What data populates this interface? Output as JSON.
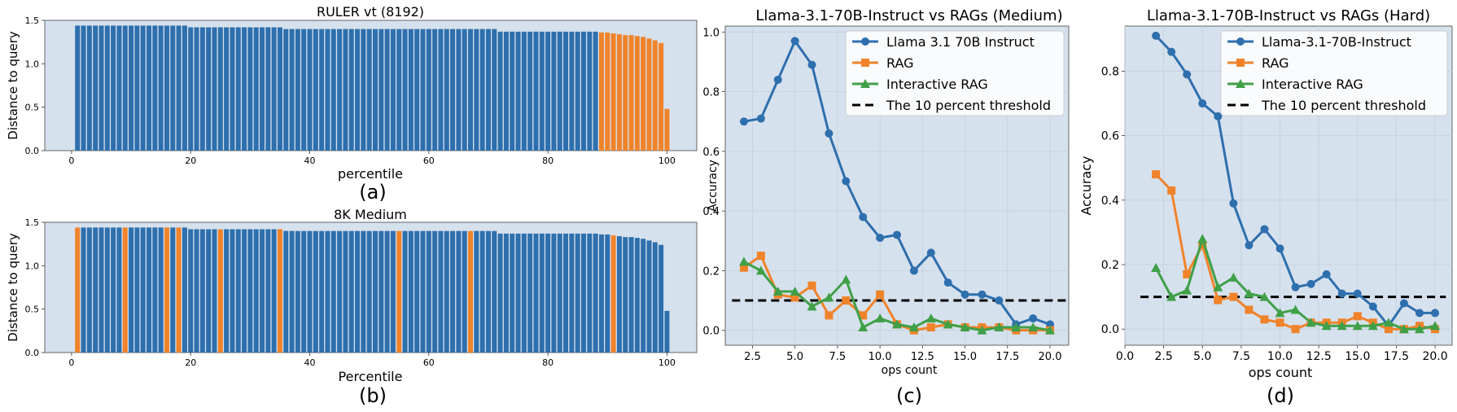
{
  "chart_data": [
    {
      "id": "a",
      "type": "bar",
      "title": "RULER vt (8192)",
      "xlabel": "percentile",
      "ylabel": "Distance to query",
      "caption": "(a)",
      "xlim": [
        -4.5,
        105
      ],
      "ylim": [
        0,
        1.5
      ],
      "xticks": [
        0,
        20,
        40,
        60,
        80,
        100
      ],
      "yticks": [
        0.0,
        0.5,
        1.0,
        1.5
      ],
      "colors": {
        "blue": "#2e6fad",
        "orange": "#f0832a",
        "background": "#d6e1ee"
      },
      "bars": {
        "x_start": 1,
        "x_step": 1,
        "values": [
          1.44,
          1.44,
          1.44,
          1.44,
          1.44,
          1.44,
          1.44,
          1.44,
          1.44,
          1.44,
          1.44,
          1.44,
          1.44,
          1.44,
          1.44,
          1.44,
          1.44,
          1.44,
          1.44,
          1.42,
          1.42,
          1.42,
          1.42,
          1.42,
          1.42,
          1.42,
          1.42,
          1.42,
          1.42,
          1.42,
          1.42,
          1.42,
          1.42,
          1.42,
          1.42,
          1.4,
          1.4,
          1.4,
          1.4,
          1.4,
          1.4,
          1.4,
          1.4,
          1.4,
          1.4,
          1.4,
          1.4,
          1.4,
          1.4,
          1.4,
          1.4,
          1.4,
          1.4,
          1.4,
          1.4,
          1.4,
          1.4,
          1.4,
          1.4,
          1.4,
          1.4,
          1.4,
          1.4,
          1.4,
          1.4,
          1.4,
          1.4,
          1.4,
          1.4,
          1.4,
          1.4,
          1.37,
          1.37,
          1.37,
          1.37,
          1.37,
          1.37,
          1.37,
          1.37,
          1.37,
          1.37,
          1.37,
          1.37,
          1.37,
          1.37,
          1.37,
          1.37,
          1.37,
          1.36,
          1.36,
          1.35,
          1.34,
          1.33,
          1.33,
          1.32,
          1.31,
          1.29,
          1.27,
          1.24,
          0.48
        ],
        "orange_indices": [
          88,
          89,
          90,
          91,
          92,
          93,
          94,
          95,
          96,
          97,
          98,
          99
        ]
      }
    },
    {
      "id": "b",
      "type": "bar",
      "title": "8K Medium",
      "xlabel": "Percentile",
      "ylabel": "Distance to query",
      "caption": "(b)",
      "xlim": [
        -4.5,
        105
      ],
      "ylim": [
        0,
        1.5
      ],
      "xticks": [
        0,
        20,
        40,
        60,
        80,
        100
      ],
      "yticks": [
        0.0,
        0.5,
        1.0,
        1.5
      ],
      "colors": {
        "blue": "#2e6fad",
        "orange": "#f0832a",
        "background": "#d6e1ee"
      },
      "bars": {
        "x_start": 1,
        "x_step": 1,
        "values": [
          1.44,
          1.44,
          1.44,
          1.44,
          1.44,
          1.44,
          1.44,
          1.44,
          1.44,
          1.44,
          1.44,
          1.44,
          1.44,
          1.44,
          1.44,
          1.44,
          1.44,
          1.44,
          1.44,
          1.42,
          1.42,
          1.42,
          1.42,
          1.42,
          1.42,
          1.42,
          1.42,
          1.42,
          1.42,
          1.42,
          1.42,
          1.42,
          1.42,
          1.42,
          1.42,
          1.4,
          1.4,
          1.4,
          1.4,
          1.4,
          1.4,
          1.4,
          1.4,
          1.4,
          1.4,
          1.4,
          1.4,
          1.4,
          1.4,
          1.4,
          1.4,
          1.4,
          1.4,
          1.4,
          1.4,
          1.4,
          1.4,
          1.4,
          1.4,
          1.4,
          1.4,
          1.4,
          1.4,
          1.4,
          1.4,
          1.4,
          1.4,
          1.4,
          1.4,
          1.4,
          1.4,
          1.37,
          1.37,
          1.37,
          1.37,
          1.37,
          1.37,
          1.37,
          1.37,
          1.37,
          1.37,
          1.37,
          1.37,
          1.37,
          1.37,
          1.37,
          1.37,
          1.37,
          1.36,
          1.36,
          1.35,
          1.34,
          1.33,
          1.33,
          1.32,
          1.31,
          1.29,
          1.27,
          1.24,
          0.48
        ],
        "orange_indices": [
          0,
          8,
          15,
          17,
          24,
          34,
          54,
          66,
          90
        ]
      }
    },
    {
      "id": "c",
      "type": "line",
      "title": "Llama-3.1-70B-Instruct vs RAGs (Medium)",
      "xlabel": "ops count",
      "ylabel": "Accuracy",
      "caption": "(c)",
      "xlim": [
        0.9,
        21.1
      ],
      "ylim": [
        -0.05,
        1.02
      ],
      "xticks": [
        2.5,
        5.0,
        7.5,
        10.0,
        12.5,
        15.0,
        17.5,
        20.0
      ],
      "xtick_labels": [
        "2.5",
        "5.0",
        "7.5",
        "10.0",
        "12.5",
        "15.0",
        "17.5",
        "20.0"
      ],
      "yticks": [
        0.0,
        0.2,
        0.4,
        0.6,
        0.8,
        1.0
      ],
      "ytick_labels": [
        "0.0",
        "0.2",
        "0.4",
        "0.6",
        "0.8",
        "1.0"
      ],
      "x": [
        2,
        3,
        4,
        5,
        6,
        7,
        8,
        9,
        10,
        11,
        12,
        13,
        14,
        15,
        16,
        17,
        18,
        19,
        20
      ],
      "series": [
        {
          "name": "Llama 3.1 70B Instruct",
          "color": "#2e6fad",
          "marker": "circle",
          "values": [
            0.7,
            0.71,
            0.84,
            0.97,
            0.89,
            0.66,
            0.5,
            0.38,
            0.31,
            0.32,
            0.2,
            0.26,
            0.16,
            0.12,
            0.12,
            0.1,
            0.02,
            0.04,
            0.02
          ]
        },
        {
          "name": "RAG",
          "color": "#f0832a",
          "marker": "square",
          "values": [
            0.21,
            0.25,
            0.12,
            0.11,
            0.15,
            0.05,
            0.1,
            0.05,
            0.12,
            0.02,
            0.0,
            0.01,
            0.02,
            0.01,
            0.01,
            0.01,
            0.0,
            0.0,
            0.0
          ]
        },
        {
          "name": "Interactive RAG",
          "color": "#3fa048",
          "marker": "triangle",
          "values": [
            0.23,
            0.2,
            0.13,
            0.13,
            0.08,
            0.11,
            0.17,
            0.01,
            0.04,
            0.02,
            0.01,
            0.04,
            0.02,
            0.01,
            0.0,
            0.01,
            0.01,
            0.01,
            0.0
          ]
        }
      ],
      "threshold": {
        "name": "The 10 percent threshold",
        "value": 0.1,
        "x_range": [
          1.3,
          21.1
        ]
      },
      "legend_position": "top-right"
    },
    {
      "id": "d",
      "type": "line",
      "title": "Llama-3.1-70B-Instruct vs RAGs (Hard)",
      "xlabel": "ops count",
      "ylabel": "Accuracy",
      "caption": "(d)",
      "xlim": [
        0,
        21.1
      ],
      "ylim": [
        -0.05,
        0.94
      ],
      "xticks": [
        0.0,
        2.5,
        5.0,
        7.5,
        10.0,
        12.5,
        15.0,
        17.5,
        20.0
      ],
      "xtick_labels": [
        "0.0",
        "2.5",
        "5.0",
        "7.5",
        "10.0",
        "12.5",
        "15.0",
        "17.5",
        "20.0"
      ],
      "yticks": [
        0.0,
        0.2,
        0.4,
        0.6,
        0.8
      ],
      "ytick_labels": [
        "0.0",
        "0.2",
        "0.4",
        "0.6",
        "0.8"
      ],
      "x": [
        2,
        3,
        4,
        5,
        6,
        7,
        8,
        9,
        10,
        11,
        12,
        13,
        14,
        15,
        16,
        17,
        18,
        19,
        20
      ],
      "series": [
        {
          "name": "Llama-3.1-70B-Instruct",
          "color": "#2e6fad",
          "marker": "circle",
          "values": [
            0.91,
            0.86,
            0.79,
            0.7,
            0.66,
            0.39,
            0.26,
            0.31,
            0.25,
            0.13,
            0.14,
            0.17,
            0.11,
            0.11,
            0.07,
            0.01,
            0.08,
            0.05,
            0.05
          ]
        },
        {
          "name": "RAG",
          "color": "#f0832a",
          "marker": "square",
          "values": [
            0.48,
            0.43,
            0.17,
            0.26,
            0.09,
            0.1,
            0.06,
            0.03,
            0.02,
            0.0,
            0.02,
            0.02,
            0.02,
            0.04,
            0.02,
            0.0,
            0.0,
            0.01,
            0.0
          ]
        },
        {
          "name": "Interactive RAG",
          "color": "#3fa048",
          "marker": "triangle",
          "values": [
            0.19,
            0.1,
            0.12,
            0.28,
            0.13,
            0.16,
            0.11,
            0.1,
            0.05,
            0.06,
            0.02,
            0.01,
            0.01,
            0.01,
            0.01,
            0.02,
            0.0,
            0.0,
            0.01
          ]
        }
      ],
      "threshold": {
        "name": "The 10 percent threshold",
        "value": 0.1,
        "x_range": [
          1.0,
          20.7
        ]
      },
      "legend_position": "top-right"
    }
  ]
}
